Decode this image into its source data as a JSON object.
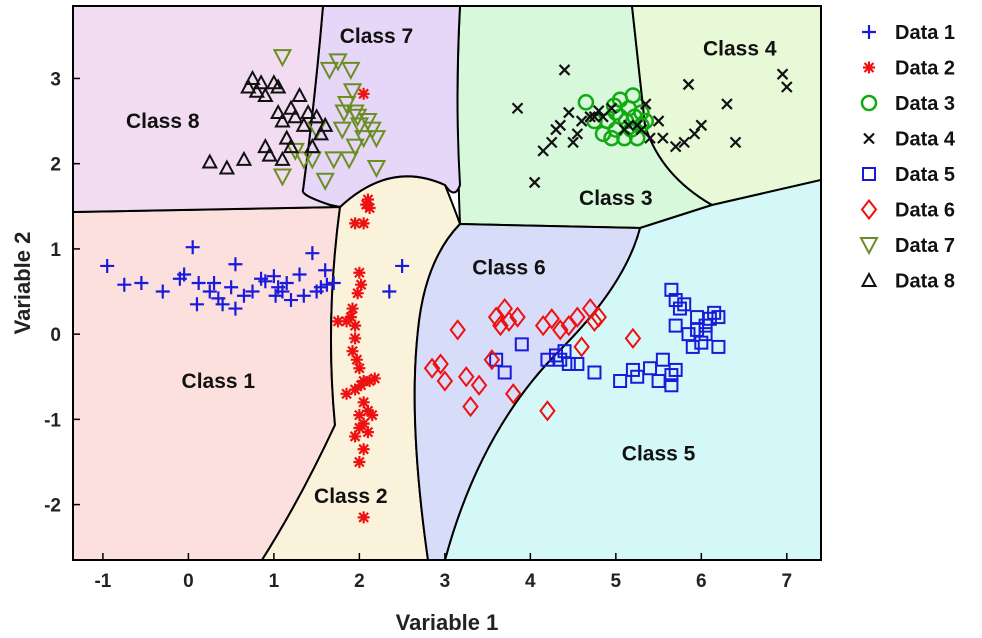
{
  "chart_data": {
    "type": "scatter",
    "xlabel": "Variable 1",
    "ylabel": "Variable 2",
    "xlim": [
      -1.35,
      7.4
    ],
    "ylim": [
      -2.65,
      3.85
    ],
    "xticks": [
      "-1",
      "0",
      "1",
      "2",
      "3",
      "4",
      "5",
      "6",
      "7"
    ],
    "yticks": [
      "-2",
      "-1",
      "0",
      "1",
      "2",
      "3"
    ],
    "grid": false,
    "legend_position": "outside-right",
    "regions": [
      {
        "label": "Class 1",
        "color": "#fbe0de",
        "label_x": 0.35,
        "label_y": -0.55
      },
      {
        "label": "Class 2",
        "color": "#fbf2dc",
        "label_x": 1.9,
        "label_y": -1.9
      },
      {
        "label": "Class 3",
        "color": "#d8f8dc",
        "label_x": 5.0,
        "label_y": 1.6
      },
      {
        "label": "Class 4",
        "color": "#e8f9d8",
        "label_x": 6.45,
        "label_y": 3.35
      },
      {
        "label": "Class 5",
        "color": "#d4f7f7",
        "label_x": 5.5,
        "label_y": -1.4
      },
      {
        "label": "Class 6",
        "color": "#d7dcf8",
        "label_x": 3.75,
        "label_y": 0.78
      },
      {
        "label": "Class 7",
        "color": "#e6d6f7",
        "label_x": 2.2,
        "label_y": 3.5
      },
      {
        "label": "Class 8",
        "color": "#f1dcf1",
        "label_x": -0.3,
        "label_y": 2.5
      }
    ],
    "series": [
      {
        "name": "Data 1",
        "marker": "plus",
        "color": "#1a1adb",
        "points": [
          [
            -0.95,
            0.8
          ],
          [
            -0.75,
            0.58
          ],
          [
            -0.55,
            0.6
          ],
          [
            -0.3,
            0.5
          ],
          [
            -0.1,
            0.65
          ],
          [
            -0.05,
            0.7
          ],
          [
            0.05,
            1.02
          ],
          [
            0.1,
            0.35
          ],
          [
            0.12,
            0.6
          ],
          [
            0.25,
            0.5
          ],
          [
            0.3,
            0.6
          ],
          [
            0.35,
            0.42
          ],
          [
            0.4,
            0.35
          ],
          [
            0.5,
            0.55
          ],
          [
            0.55,
            0.3
          ],
          [
            0.55,
            0.82
          ],
          [
            0.65,
            0.45
          ],
          [
            0.75,
            0.5
          ],
          [
            0.85,
            0.65
          ],
          [
            0.9,
            0.62
          ],
          [
            1.0,
            0.68
          ],
          [
            1.02,
            0.45
          ],
          [
            1.05,
            0.55
          ],
          [
            1.1,
            0.5
          ],
          [
            1.15,
            0.6
          ],
          [
            1.2,
            0.4
          ],
          [
            1.3,
            0.7
          ],
          [
            1.35,
            0.45
          ],
          [
            1.45,
            0.95
          ],
          [
            1.5,
            0.5
          ],
          [
            1.55,
            0.55
          ],
          [
            1.6,
            0.75
          ],
          [
            1.62,
            0.58
          ],
          [
            1.7,
            0.6
          ],
          [
            2.35,
            0.5
          ],
          [
            2.5,
            0.8
          ]
        ]
      },
      {
        "name": "Data 2",
        "marker": "asterisk",
        "color": "#ee1111",
        "points": [
          [
            2.05,
            2.82
          ],
          [
            2.1,
            1.58
          ],
          [
            2.12,
            1.48
          ],
          [
            2.08,
            1.52
          ],
          [
            1.95,
            1.3
          ],
          [
            2.05,
            1.3
          ],
          [
            2.0,
            0.72
          ],
          [
            2.02,
            0.58
          ],
          [
            1.98,
            0.48
          ],
          [
            1.92,
            0.3
          ],
          [
            1.9,
            0.2
          ],
          [
            1.95,
            0.1
          ],
          [
            1.85,
            0.15
          ],
          [
            1.75,
            0.15
          ],
          [
            1.95,
            -0.05
          ],
          [
            1.92,
            -0.2
          ],
          [
            1.97,
            -0.3
          ],
          [
            2.0,
            -0.4
          ],
          [
            2.05,
            -0.55
          ],
          [
            2.12,
            -0.55
          ],
          [
            2.18,
            -0.52
          ],
          [
            2.02,
            -0.6
          ],
          [
            1.95,
            -0.65
          ],
          [
            1.85,
            -0.7
          ],
          [
            2.05,
            -0.8
          ],
          [
            2.1,
            -0.9
          ],
          [
            2.0,
            -0.95
          ],
          [
            2.15,
            -0.95
          ],
          [
            2.05,
            -1.05
          ],
          [
            2.0,
            -1.1
          ],
          [
            2.1,
            -1.15
          ],
          [
            1.95,
            -1.2
          ],
          [
            2.05,
            -1.35
          ],
          [
            2.0,
            -1.5
          ],
          [
            2.05,
            -2.15
          ]
        ]
      },
      {
        "name": "Data 3",
        "marker": "circle",
        "color": "#11aa11",
        "points": [
          [
            4.65,
            2.72
          ],
          [
            4.75,
            2.5
          ],
          [
            4.85,
            2.35
          ],
          [
            4.9,
            2.5
          ],
          [
            4.95,
            2.3
          ],
          [
            5.0,
            2.6
          ],
          [
            5.0,
            2.4
          ],
          [
            5.05,
            2.55
          ],
          [
            5.1,
            2.3
          ],
          [
            5.12,
            2.5
          ],
          [
            5.15,
            2.65
          ],
          [
            5.18,
            2.4
          ],
          [
            5.2,
            2.8
          ],
          [
            5.22,
            2.55
          ],
          [
            5.25,
            2.3
          ],
          [
            5.3,
            2.6
          ],
          [
            5.3,
            2.45
          ],
          [
            5.35,
            2.5
          ],
          [
            5.05,
            2.75
          ],
          [
            4.98,
            2.68
          ]
        ]
      },
      {
        "name": "Data 4",
        "marker": "x",
        "color": "#111111",
        "points": [
          [
            3.85,
            2.65
          ],
          [
            4.05,
            1.78
          ],
          [
            4.15,
            2.15
          ],
          [
            4.25,
            2.25
          ],
          [
            4.3,
            2.4
          ],
          [
            4.35,
            2.45
          ],
          [
            4.4,
            3.1
          ],
          [
            4.45,
            2.6
          ],
          [
            4.5,
            2.25
          ],
          [
            4.55,
            2.35
          ],
          [
            4.6,
            2.5
          ],
          [
            4.7,
            2.55
          ],
          [
            4.75,
            2.55
          ],
          [
            4.8,
            2.62
          ],
          [
            4.85,
            2.55
          ],
          [
            4.95,
            2.65
          ],
          [
            5.1,
            2.4
          ],
          [
            5.15,
            2.45
          ],
          [
            5.25,
            2.45
          ],
          [
            5.3,
            2.4
          ],
          [
            5.35,
            2.7
          ],
          [
            5.4,
            2.3
          ],
          [
            5.5,
            2.5
          ],
          [
            5.55,
            2.3
          ],
          [
            5.7,
            2.2
          ],
          [
            5.8,
            2.25
          ],
          [
            5.85,
            2.93
          ],
          [
            5.92,
            2.35
          ],
          [
            6.0,
            2.45
          ],
          [
            6.3,
            2.7
          ],
          [
            6.4,
            2.25
          ],
          [
            6.95,
            3.05
          ],
          [
            7.0,
            2.9
          ]
        ]
      },
      {
        "name": "Data 5",
        "marker": "square",
        "color": "#1a1adb",
        "points": [
          [
            3.6,
            -0.3
          ],
          [
            3.7,
            -0.45
          ],
          [
            3.9,
            -0.12
          ],
          [
            4.2,
            -0.3
          ],
          [
            4.3,
            -0.25
          ],
          [
            4.35,
            -0.3
          ],
          [
            4.4,
            -0.2
          ],
          [
            4.45,
            -0.35
          ],
          [
            4.55,
            -0.35
          ],
          [
            4.75,
            -0.45
          ],
          [
            5.05,
            -0.55
          ],
          [
            5.2,
            -0.42
          ],
          [
            5.25,
            -0.5
          ],
          [
            5.4,
            -0.4
          ],
          [
            5.5,
            -0.55
          ],
          [
            5.55,
            -0.3
          ],
          [
            5.65,
            -0.48
          ],
          [
            5.7,
            -0.42
          ],
          [
            5.65,
            -0.6
          ],
          [
            5.7,
            0.1
          ],
          [
            5.65,
            0.52
          ],
          [
            5.7,
            0.4
          ],
          [
            5.75,
            0.3
          ],
          [
            5.8,
            0.35
          ],
          [
            5.85,
            0.0
          ],
          [
            5.9,
            -0.15
          ],
          [
            5.95,
            0.2
          ],
          [
            6.0,
            -0.1
          ],
          [
            6.05,
            0.0
          ],
          [
            6.1,
            0.18
          ],
          [
            6.15,
            0.25
          ],
          [
            6.2,
            0.2
          ],
          [
            6.2,
            -0.15
          ],
          [
            5.95,
            0.05
          ],
          [
            6.05,
            0.1
          ]
        ]
      },
      {
        "name": "Data 6",
        "marker": "diamond",
        "color": "#ee1111",
        "points": [
          [
            2.85,
            -0.4
          ],
          [
            2.95,
            -0.35
          ],
          [
            3.0,
            -0.55
          ],
          [
            3.15,
            0.05
          ],
          [
            3.25,
            -0.5
          ],
          [
            3.3,
            -0.85
          ],
          [
            3.4,
            -0.6
          ],
          [
            3.55,
            -0.3
          ],
          [
            3.6,
            0.2
          ],
          [
            3.65,
            0.1
          ],
          [
            3.7,
            0.3
          ],
          [
            3.75,
            0.15
          ],
          [
            3.8,
            -0.7
          ],
          [
            3.85,
            0.2
          ],
          [
            4.15,
            0.1
          ],
          [
            4.2,
            -0.9
          ],
          [
            4.25,
            0.18
          ],
          [
            4.35,
            0.05
          ],
          [
            4.45,
            0.1
          ],
          [
            4.55,
            0.2
          ],
          [
            4.6,
            -0.15
          ],
          [
            4.7,
            0.3
          ],
          [
            4.75,
            0.15
          ],
          [
            4.8,
            0.2
          ],
          [
            5.2,
            -0.05
          ]
        ]
      },
      {
        "name": "Data 7",
        "marker": "triangle-down",
        "color": "#6b8e23",
        "points": [
          [
            1.1,
            3.25
          ],
          [
            1.1,
            1.85
          ],
          [
            1.25,
            2.15
          ],
          [
            1.35,
            2.05
          ],
          [
            1.45,
            2.05
          ],
          [
            1.5,
            2.4
          ],
          [
            1.6,
            1.8
          ],
          [
            1.65,
            3.1
          ],
          [
            1.7,
            2.05
          ],
          [
            1.75,
            3.2
          ],
          [
            1.8,
            2.4
          ],
          [
            1.82,
            2.6
          ],
          [
            1.85,
            2.7
          ],
          [
            1.9,
            3.1
          ],
          [
            1.92,
            2.85
          ],
          [
            1.95,
            2.6
          ],
          [
            1.98,
            2.55
          ],
          [
            2.0,
            2.45
          ],
          [
            2.05,
            2.3
          ],
          [
            2.1,
            2.5
          ],
          [
            2.15,
            2.4
          ],
          [
            2.2,
            2.3
          ],
          [
            1.88,
            2.05
          ],
          [
            1.95,
            2.2
          ],
          [
            2.2,
            1.95
          ]
        ]
      },
      {
        "name": "Data 8",
        "marker": "triangle",
        "color": "#111111",
        "points": [
          [
            0.25,
            2.02
          ],
          [
            0.45,
            1.95
          ],
          [
            0.65,
            2.05
          ],
          [
            0.7,
            2.9
          ],
          [
            0.75,
            3.0
          ],
          [
            0.8,
            2.85
          ],
          [
            0.85,
            2.95
          ],
          [
            0.9,
            2.8
          ],
          [
            0.9,
            2.2
          ],
          [
            0.95,
            2.1
          ],
          [
            1.0,
            2.95
          ],
          [
            1.05,
            2.9
          ],
          [
            1.05,
            2.6
          ],
          [
            1.1,
            2.5
          ],
          [
            1.15,
            2.3
          ],
          [
            1.2,
            2.65
          ],
          [
            1.25,
            2.55
          ],
          [
            1.3,
            2.8
          ],
          [
            1.35,
            2.45
          ],
          [
            1.4,
            2.6
          ],
          [
            1.45,
            2.2
          ],
          [
            1.5,
            2.55
          ],
          [
            1.55,
            2.35
          ],
          [
            1.6,
            2.45
          ],
          [
            1.2,
            2.2
          ],
          [
            1.1,
            2.05
          ]
        ]
      }
    ]
  }
}
